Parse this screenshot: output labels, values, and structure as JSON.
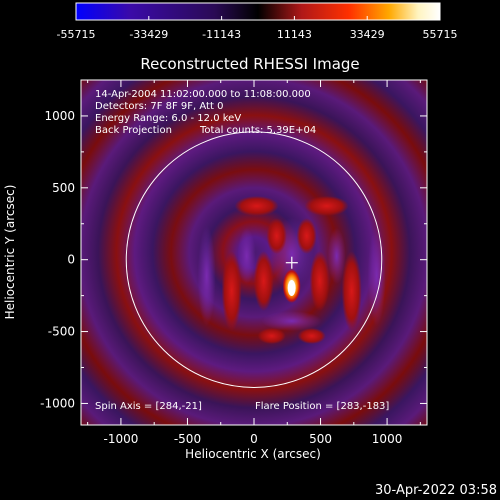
{
  "chart_data": {
    "type": "heatmap",
    "title": "Reconstructed RHESSI Image",
    "xlabel": "Heliocentric X (arcsec)",
    "ylabel": "Heliocentric Y (arcsec)",
    "xlim": [
      -1300,
      1300
    ],
    "ylim": [
      -1150,
      1250
    ],
    "x_ticks": [
      -1000,
      -500,
      0,
      500,
      1000
    ],
    "y_ticks": [
      -1000,
      -500,
      0,
      500,
      1000
    ],
    "x_tick_labels": [
      "-1000",
      "-500",
      "0",
      "500",
      "1000"
    ],
    "y_tick_labels": [
      "-1000",
      "-500",
      "0",
      "500",
      "1000"
    ],
    "colorbar": {
      "min": -55715,
      "max": 55715,
      "tick_labels": [
        "-55715",
        "-33429",
        "-11143",
        "11143",
        "33429",
        "55715"
      ],
      "colormap": [
        "#0000ff",
        "#3a0aa8",
        "#2a0a55",
        "#000000",
        "#b01818",
        "#ff3000",
        "#ffa800",
        "#fff4c0",
        "#ffffff"
      ]
    },
    "solar_disk_radius_arcsec": 960,
    "flare_source": {
      "x": 283,
      "y": -183
    },
    "spin_axis": {
      "x": 284,
      "y": -21
    },
    "annotations": {
      "time_range": "14-Apr-2004 11:02:00.000 to 11:08:00.000",
      "detectors": "Detectors: 7F 8F 9F, Att 0",
      "energy_range": "Energy Range: 6.0 - 12.0 keV",
      "method": "Back Projection",
      "total_counts": "Total counts: 5.39E+04",
      "spin_axis": "Spin Axis = [284,-21]",
      "flare_position": "Flare Position = [283,-183]"
    },
    "grid": false
  },
  "footer": {
    "timestamp": "30-Apr-2022 03:58"
  }
}
